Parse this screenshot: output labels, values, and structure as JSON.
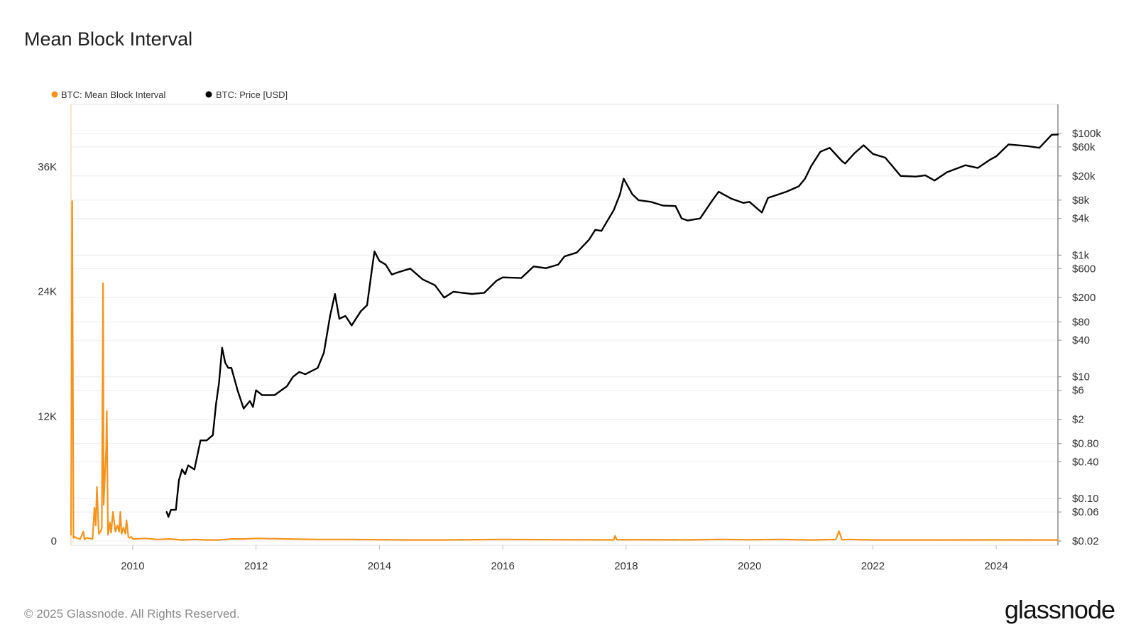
{
  "title": "Mean Block Interval",
  "footer": {
    "copyright": "© 2025 Glassnode. All Rights Reserved.",
    "brand": "glassnode"
  },
  "colors": {
    "interval": "#f7931a",
    "price": "#000000",
    "grid": "#ececec",
    "axis": "#b0b0b0"
  },
  "chart_data": {
    "type": "line",
    "title": "Mean Block Interval",
    "legend": {
      "placement": "top-left",
      "entries": [
        "BTC: Mean Block Interval",
        "BTC: Price [USD]"
      ]
    },
    "x_axis": {
      "range": [
        2009.0,
        2025.0
      ],
      "ticks": [
        "2010",
        "2012",
        "2014",
        "2016",
        "2018",
        "2020",
        "2022",
        "2024"
      ]
    },
    "y_left": {
      "range": [
        0,
        42000
      ],
      "ticks": [
        {
          "value": 0,
          "label": "0"
        },
        {
          "value": 12000,
          "label": "12K"
        },
        {
          "value": 24000,
          "label": "24K"
        },
        {
          "value": 36000,
          "label": "36K"
        }
      ]
    },
    "y_right": {
      "scale": "log",
      "range": [
        0.02,
        300000
      ],
      "ticks": [
        {
          "value": 100000,
          "label": "$100k"
        },
        {
          "value": 60000,
          "label": "$60k"
        },
        {
          "value": 20000,
          "label": "$20k"
        },
        {
          "value": 8000,
          "label": "$8k"
        },
        {
          "value": 4000,
          "label": "$4k"
        },
        {
          "value": 1000,
          "label": "$1k"
        },
        {
          "value": 600,
          "label": "$600"
        },
        {
          "value": 200,
          "label": "$200"
        },
        {
          "value": 80,
          "label": "$80"
        },
        {
          "value": 40,
          "label": "$40"
        },
        {
          "value": 10,
          "label": "$10"
        },
        {
          "value": 6,
          "label": "$6"
        },
        {
          "value": 2,
          "label": "$2"
        },
        {
          "value": 0.8,
          "label": "$0.80"
        },
        {
          "value": 0.4,
          "label": "$0.40"
        },
        {
          "value": 0.1,
          "label": "$0.10"
        },
        {
          "value": 0.06,
          "label": "$0.06"
        },
        {
          "value": 0.02,
          "label": "$0.02"
        }
      ]
    },
    "grid": true,
    "series": [
      {
        "name": "BTC: Mean Block Interval",
        "axis": "left",
        "x": [
          2009.0,
          2009.02,
          2009.04,
          2009.06,
          2009.1,
          2009.15,
          2009.2,
          2009.22,
          2009.25,
          2009.3,
          2009.35,
          2009.38,
          2009.4,
          2009.42,
          2009.45,
          2009.48,
          2009.5,
          2009.52,
          2009.53,
          2009.55,
          2009.57,
          2009.58,
          2009.6,
          2009.62,
          2009.63,
          2009.65,
          2009.68,
          2009.72,
          2009.75,
          2009.78,
          2009.8,
          2009.82,
          2009.85,
          2009.88,
          2009.9,
          2009.93,
          2009.95,
          2009.98,
          2010.0,
          2010.2,
          2010.4,
          2010.6,
          2010.8,
          2011.0,
          2011.2,
          2011.4,
          2011.6,
          2011.8,
          2012.0,
          2012.5,
          2013.0,
          2013.5,
          2014.0,
          2014.5,
          2015.0,
          2016.0,
          2017.0,
          2017.8,
          2017.82,
          2017.85,
          2018.0,
          2019.0,
          2019.5,
          2020.0,
          2020.5,
          2021.0,
          2021.4,
          2021.45,
          2021.5,
          2021.6,
          2022.0,
          2023.0,
          2024.0,
          2025.0
        ],
        "values": [
          600,
          32700,
          300,
          400,
          250,
          200,
          900,
          150,
          300,
          250,
          200,
          3200,
          1500,
          5200,
          700,
          900,
          1300,
          24800,
          3500,
          6300,
          8800,
          12500,
          600,
          1300,
          1800,
          800,
          2800,
          900,
          1500,
          900,
          2800,
          700,
          1300,
          700,
          2000,
          400,
          300,
          400,
          200,
          250,
          150,
          200,
          100,
          150,
          100,
          100,
          200,
          200,
          250,
          200,
          150,
          150,
          120,
          100,
          100,
          150,
          120,
          110,
          500,
          120,
          130,
          110,
          150,
          120,
          150,
          100,
          150,
          950,
          120,
          150,
          100,
          100,
          110,
          100
        ]
      },
      {
        "name": "BTC: Price [USD]",
        "axis": "right",
        "x": [
          2010.55,
          2010.58,
          2010.62,
          2010.7,
          2010.75,
          2010.8,
          2010.85,
          2010.9,
          2011.0,
          2011.1,
          2011.2,
          2011.3,
          2011.35,
          2011.4,
          2011.45,
          2011.5,
          2011.55,
          2011.6,
          2011.7,
          2011.8,
          2011.9,
          2011.95,
          2012.0,
          2012.1,
          2012.3,
          2012.5,
          2012.6,
          2012.7,
          2012.8,
          2013.0,
          2013.1,
          2013.2,
          2013.28,
          2013.35,
          2013.45,
          2013.55,
          2013.7,
          2013.8,
          2013.88,
          2013.92,
          2014.0,
          2014.1,
          2014.2,
          2014.3,
          2014.5,
          2014.7,
          2014.9,
          2015.05,
          2015.2,
          2015.5,
          2015.7,
          2015.9,
          2016.0,
          2016.3,
          2016.5,
          2016.7,
          2016.9,
          2017.0,
          2017.2,
          2017.4,
          2017.5,
          2017.6,
          2017.8,
          2017.9,
          2017.96,
          2018.1,
          2018.2,
          2018.4,
          2018.6,
          2018.8,
          2018.9,
          2019.0,
          2019.2,
          2019.4,
          2019.5,
          2019.7,
          2019.9,
          2020.0,
          2020.2,
          2020.3,
          2020.6,
          2020.8,
          2020.9,
          2021.0,
          2021.15,
          2021.3,
          2021.5,
          2021.55,
          2021.7,
          2021.85,
          2022.0,
          2022.2,
          2022.45,
          2022.7,
          2022.85,
          2023.0,
          2023.2,
          2023.5,
          2023.7,
          2023.9,
          2024.0,
          2024.2,
          2024.5,
          2024.7,
          2024.9,
          2025.0
        ],
        "values": [
          0.06,
          0.05,
          0.065,
          0.065,
          0.2,
          0.3,
          0.25,
          0.35,
          0.3,
          0.9,
          0.9,
          1.1,
          3.5,
          8,
          30,
          17,
          14,
          14,
          6,
          3,
          4,
          3.2,
          6,
          5,
          5,
          7,
          10,
          12,
          11,
          14,
          25,
          100,
          230,
          90,
          100,
          70,
          120,
          150,
          600,
          1150,
          800,
          700,
          480,
          520,
          600,
          400,
          320,
          200,
          250,
          230,
          240,
          380,
          430,
          420,
          650,
          610,
          700,
          950,
          1100,
          1800,
          2600,
          2500,
          5500,
          10000,
          18000,
          10000,
          8000,
          7500,
          6500,
          6400,
          4000,
          3700,
          4000,
          8000,
          11000,
          8500,
          7200,
          7500,
          5000,
          8700,
          11000,
          13500,
          18000,
          29000,
          50000,
          58000,
          35000,
          32000,
          47000,
          64000,
          46000,
          40000,
          20000,
          19500,
          20500,
          16800,
          23000,
          30000,
          27000,
          37000,
          42000,
          66000,
          62000,
          58000,
          95000,
          96000
        ]
      }
    ]
  }
}
